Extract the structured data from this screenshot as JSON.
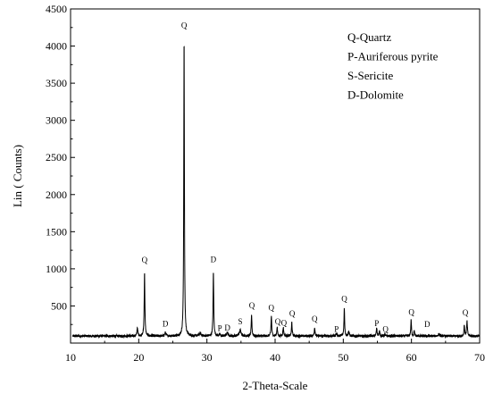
{
  "chart_data": {
    "type": "line",
    "title": "",
    "xlabel": "2-Theta-Scale",
    "ylabel": "Lin ( Counts)",
    "xlim": [
      10,
      70
    ],
    "ylim": [
      0,
      4500
    ],
    "x_ticks": [
      10,
      20,
      30,
      40,
      50,
      60,
      70
    ],
    "x_tick_labels": [
      "10",
      "20",
      "30",
      "40",
      "50",
      "60",
      "70"
    ],
    "y_ticks": [
      500,
      1000,
      1500,
      2000,
      2500,
      3000,
      3500,
      4000,
      4500
    ],
    "y_tick_labels": [
      "500",
      "1000",
      "1500",
      "2000",
      "2500",
      "3000",
      "3500",
      "4000",
      "4500"
    ],
    "grid": false,
    "legend_position": "top-right",
    "legend": [
      {
        "text": "Q-Quartz"
      },
      {
        "text": "P-Auriferous pyrite"
      },
      {
        "text": "S-Sericite"
      },
      {
        "text": "D-Dolomite"
      }
    ],
    "series": [
      {
        "color": "#000000",
        "baseline": 95,
        "peaks": [
          {
            "x": 19.8,
            "y": 210,
            "w": 0.07
          },
          {
            "x": 20.85,
            "y": 950,
            "w": 0.06
          },
          {
            "x": 23.9,
            "y": 140,
            "w": 0.1
          },
          {
            "x": 26.65,
            "y": 4120,
            "w": 0.055
          },
          {
            "x": 29.0,
            "y": 130,
            "w": 0.15
          },
          {
            "x": 30.95,
            "y": 960,
            "w": 0.06
          },
          {
            "x": 31.9,
            "y": 120,
            "w": 0.08
          },
          {
            "x": 33.0,
            "y": 150,
            "w": 0.1
          },
          {
            "x": 34.9,
            "y": 175,
            "w": 0.15
          },
          {
            "x": 36.55,
            "y": 380,
            "w": 0.06
          },
          {
            "x": 39.45,
            "y": 370,
            "w": 0.06
          },
          {
            "x": 40.3,
            "y": 220,
            "w": 0.06
          },
          {
            "x": 41.2,
            "y": 210,
            "w": 0.07
          },
          {
            "x": 42.45,
            "y": 280,
            "w": 0.06
          },
          {
            "x": 45.8,
            "y": 210,
            "w": 0.07
          },
          {
            "x": 49.0,
            "y": 130,
            "w": 0.1
          },
          {
            "x": 50.15,
            "y": 470,
            "w": 0.06
          },
          {
            "x": 50.8,
            "y": 160,
            "w": 0.08
          },
          {
            "x": 54.9,
            "y": 200,
            "w": 0.07
          },
          {
            "x": 55.3,
            "y": 160,
            "w": 0.07
          },
          {
            "x": 56.1,
            "y": 120,
            "w": 0.07
          },
          {
            "x": 59.95,
            "y": 310,
            "w": 0.06
          },
          {
            "x": 60.4,
            "y": 170,
            "w": 0.06
          },
          {
            "x": 64.0,
            "y": 120,
            "w": 0.1
          },
          {
            "x": 67.75,
            "y": 240,
            "w": 0.06
          },
          {
            "x": 68.15,
            "y": 290,
            "w": 0.07
          }
        ]
      }
    ],
    "peak_labels": [
      {
        "x": 20.85,
        "y": 1080,
        "text": "Q"
      },
      {
        "x": 23.9,
        "y": 220,
        "text": "D"
      },
      {
        "x": 26.65,
        "y": 4240,
        "text": "Q"
      },
      {
        "x": 30.95,
        "y": 1090,
        "text": "D"
      },
      {
        "x": 31.9,
        "y": 165,
        "text": "P"
      },
      {
        "x": 33.0,
        "y": 170,
        "text": "D"
      },
      {
        "x": 34.9,
        "y": 250,
        "text": "S"
      },
      {
        "x": 36.6,
        "y": 470,
        "text": "Q"
      },
      {
        "x": 39.45,
        "y": 440,
        "text": "Q"
      },
      {
        "x": 40.4,
        "y": 255,
        "text": "Q"
      },
      {
        "x": 41.3,
        "y": 235,
        "text": "Q"
      },
      {
        "x": 42.5,
        "y": 360,
        "text": "Q"
      },
      {
        "x": 45.8,
        "y": 290,
        "text": "Q"
      },
      {
        "x": 49.0,
        "y": 150,
        "text": "P"
      },
      {
        "x": 50.15,
        "y": 560,
        "text": "Q"
      },
      {
        "x": 54.9,
        "y": 230,
        "text": "P"
      },
      {
        "x": 56.2,
        "y": 150,
        "text": "Q"
      },
      {
        "x": 60.0,
        "y": 380,
        "text": "Q"
      },
      {
        "x": 62.3,
        "y": 215,
        "text": "D"
      },
      {
        "x": 67.9,
        "y": 370,
        "text": "Q"
      }
    ]
  }
}
